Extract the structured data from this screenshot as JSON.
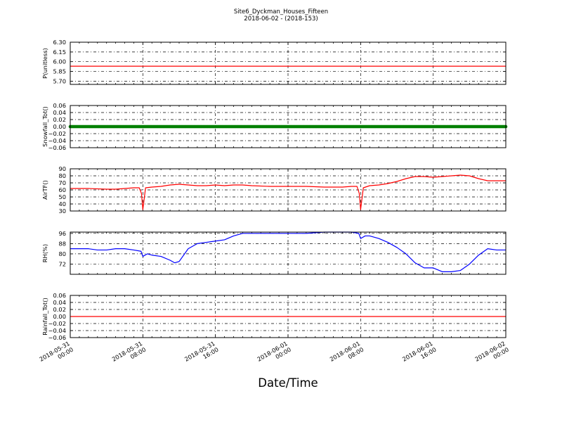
{
  "figure": {
    "title": "Site6_Dyckman_Houses_Fifteen",
    "subtitle": "2018-06-02 - (2018-153)",
    "xlabel": "Date/Time"
  },
  "chart_data": [
    {
      "type": "line",
      "ylabel": "P(unitless)",
      "ylim": [
        5.65,
        6.3
      ],
      "yticks": [
        "6.30",
        "6.15",
        "6.00",
        "5.85",
        "5.70"
      ],
      "ytick_values": [
        6.3,
        6.15,
        6.0,
        5.85,
        5.7
      ],
      "xlim": [
        0,
        48
      ],
      "xticks": [
        "2018-05-31 00:00",
        "2018-05-31 08:00",
        "2018-05-31 16:00",
        "2018-06-01 00:00",
        "2018-06-01 08:00",
        "2018-06-01 16:00",
        "2018-06-02 00:00"
      ],
      "grid": true,
      "series": [
        {
          "color": "#ff0000",
          "x": [
            0,
            48
          ],
          "y": [
            5.93,
            5.93
          ]
        }
      ]
    },
    {
      "type": "scatter",
      "ylabel": "Snowfall_Tot()",
      "ylim": [
        -0.06,
        0.06
      ],
      "yticks": [
        "0.06",
        "0.04",
        "0.02",
        "0.00",
        "−0.02",
        "−0.04",
        "−0.06"
      ],
      "ytick_values": [
        0.06,
        0.04,
        0.02,
        0.0,
        -0.02,
        -0.04,
        -0.06
      ],
      "xlim": [
        0,
        48
      ],
      "grid": true,
      "series": [
        {
          "color": "#008000",
          "x_range": [
            0,
            48
          ],
          "value": 0.0
        }
      ]
    },
    {
      "type": "line",
      "ylabel": "AirTF()",
      "ylim": [
        30,
        90
      ],
      "yticks": [
        "90",
        "80",
        "70",
        "60",
        "50",
        "40",
        "30"
      ],
      "ytick_values": [
        90,
        80,
        70,
        60,
        50,
        40,
        30
      ],
      "xlim": [
        0,
        48
      ],
      "grid": true,
      "series": [
        {
          "color": "#ff0000",
          "x": [
            0,
            2,
            4,
            5,
            6,
            7,
            7.6,
            7.85,
            8.0,
            8.3,
            9,
            10,
            11,
            12,
            13,
            14,
            15,
            16,
            17,
            18,
            19,
            20,
            22,
            24,
            26,
            28,
            30,
            31,
            31.6,
            31.85,
            32.0,
            32.3,
            33,
            34,
            35,
            36,
            37,
            38,
            39,
            40,
            41,
            42,
            43,
            44,
            45,
            46,
            47,
            48
          ],
          "y": [
            62,
            62,
            61,
            61,
            62,
            63,
            63,
            55,
            32,
            63,
            64,
            65,
            67,
            68,
            67,
            66,
            66,
            67,
            66,
            67,
            67,
            66,
            65,
            65,
            65,
            64,
            64,
            65,
            65,
            55,
            32,
            63,
            66,
            67,
            69,
            72,
            76,
            79,
            79,
            78,
            79,
            80,
            81,
            80,
            76,
            73,
            73,
            73
          ]
        }
      ]
    },
    {
      "type": "line",
      "ylabel": "RH(%)",
      "ylim": [
        64,
        97
      ],
      "yticks": [
        "96",
        "88",
        "80",
        "72"
      ],
      "ytick_values": [
        96,
        88,
        80,
        72
      ],
      "xlim": [
        0,
        48
      ],
      "grid": true,
      "series": [
        {
          "color": "#0000ff",
          "x": [
            0,
            1,
            2,
            3,
            4,
            5,
            6,
            7,
            7.8,
            8.0,
            8.5,
            9,
            10,
            11,
            11.5,
            12,
            13,
            14,
            15,
            16,
            17,
            18,
            19,
            20,
            22,
            24,
            26,
            28,
            30,
            31,
            31.8,
            32.0,
            32.5,
            33,
            34,
            35,
            36,
            37,
            38,
            39,
            40,
            41,
            42,
            43,
            44,
            45,
            46,
            47,
            48
          ],
          "y": [
            84,
            84,
            84,
            83,
            83,
            84,
            84,
            83,
            82,
            78,
            80,
            79,
            78,
            75,
            73,
            74,
            84,
            88,
            89,
            90,
            91,
            94,
            96,
            96,
            96,
            96,
            96,
            97,
            97,
            97,
            96,
            92,
            94,
            94,
            92,
            89,
            85,
            80,
            73,
            69,
            69,
            66,
            66,
            67,
            72,
            79,
            84,
            83,
            83
          ]
        }
      ]
    },
    {
      "type": "line",
      "ylabel": "Rainfall_Tot()",
      "ylim": [
        -0.06,
        0.06
      ],
      "yticks": [
        "0.06",
        "0.04",
        "0.02",
        "0.00",
        "−0.02",
        "−0.04",
        "−0.06"
      ],
      "ytick_values": [
        0.06,
        0.04,
        0.02,
        0.0,
        -0.02,
        -0.04,
        -0.06
      ],
      "xlim": [
        0,
        48
      ],
      "grid": true,
      "series": [
        {
          "color": "#ff0000",
          "x": [
            0,
            48
          ],
          "y": [
            0.0,
            0.0
          ]
        }
      ]
    }
  ]
}
